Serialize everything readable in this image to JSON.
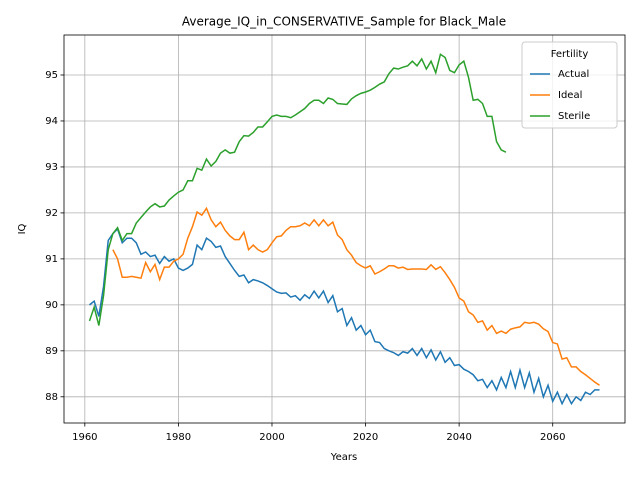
{
  "chart_data": {
    "type": "line",
    "title": "Average_IQ_in_CONSERVATIVE_Sample for Black_Male",
    "x_label": "Years",
    "y_label": "IQ",
    "legend_title": "Fertility",
    "legend_position": "upper right",
    "grid": true,
    "x": [
      1961,
      1962,
      1963,
      1964,
      1965,
      1966,
      1967,
      1968,
      1969,
      1970,
      1971,
      1972,
      1973,
      1974,
      1975,
      1976,
      1977,
      1978,
      1979,
      1980,
      1981,
      1982,
      1983,
      1984,
      1985,
      1986,
      1987,
      1988,
      1989,
      1990,
      1991,
      1992,
      1993,
      1994,
      1995,
      1996,
      1997,
      1998,
      1999,
      2000,
      2001,
      2002,
      2003,
      2004,
      2005,
      2006,
      2007,
      2008,
      2009,
      2010,
      2011,
      2012,
      2013,
      2014,
      2015,
      2016,
      2017,
      2018,
      2019,
      2020,
      2021,
      2022,
      2023,
      2024,
      2025,
      2026,
      2027,
      2028,
      2029,
      2030,
      2031,
      2032,
      2033,
      2034,
      2035,
      2036,
      2037,
      2038,
      2039,
      2040,
      2041,
      2042,
      2043,
      2044,
      2045,
      2046,
      2047,
      2048,
      2049,
      2050,
      2051,
      2052,
      2053,
      2054,
      2055,
      2056,
      2057,
      2058,
      2059,
      2060,
      2061,
      2062,
      2063,
      2064,
      2065,
      2066,
      2067,
      2068,
      2069,
      2070
    ],
    "series": [
      {
        "name": "Actual",
        "color": "#1f77b4",
        "values": [
          90.0,
          90.08,
          89.75,
          90.4,
          91.4,
          91.55,
          91.65,
          91.35,
          91.45,
          91.45,
          91.35,
          91.1,
          91.15,
          91.05,
          91.08,
          90.9,
          91.05,
          90.95,
          91.0,
          90.8,
          90.75,
          90.8,
          90.88,
          91.3,
          91.2,
          91.45,
          91.38,
          91.25,
          91.28,
          91.05,
          90.9,
          90.75,
          90.62,
          90.65,
          90.48,
          90.55,
          90.52,
          90.48,
          90.42,
          90.35,
          90.28,
          90.25,
          90.26,
          90.17,
          90.2,
          90.1,
          90.22,
          90.14,
          90.3,
          90.15,
          90.3,
          90.05,
          90.2,
          89.85,
          89.92,
          89.55,
          89.72,
          89.45,
          89.55,
          89.35,
          89.45,
          89.2,
          89.18,
          89.05,
          89.0,
          88.96,
          88.9,
          88.98,
          88.95,
          89.05,
          88.9,
          89.05,
          88.85,
          89.02,
          88.8,
          88.98,
          88.75,
          88.85,
          88.68,
          88.7,
          88.6,
          88.55,
          88.48,
          88.35,
          88.38,
          88.2,
          88.35,
          88.15,
          88.42,
          88.2,
          88.55,
          88.2,
          88.58,
          88.2,
          88.52,
          88.1,
          88.4,
          88.0,
          88.25,
          87.9,
          88.1,
          87.85,
          88.05,
          87.85,
          88.0,
          87.92,
          88.1,
          88.05,
          88.15,
          88.15
        ]
      },
      {
        "name": "Ideal",
        "color": "#ff7f0e",
        "values": [
          null,
          null,
          null,
          null,
          null,
          91.2,
          91.0,
          90.6,
          90.6,
          90.62,
          90.6,
          90.58,
          90.92,
          90.72,
          90.88,
          90.55,
          90.82,
          90.82,
          90.95,
          91.0,
          91.1,
          91.45,
          91.7,
          92.02,
          91.95,
          92.1,
          91.85,
          91.7,
          91.8,
          91.62,
          91.5,
          91.42,
          91.42,
          91.58,
          91.2,
          91.3,
          91.2,
          91.15,
          91.2,
          91.35,
          91.48,
          91.5,
          91.62,
          91.7,
          91.7,
          91.72,
          91.78,
          91.72,
          91.85,
          91.72,
          91.85,
          91.72,
          91.8,
          91.52,
          91.42,
          91.2,
          91.08,
          90.92,
          90.85,
          90.8,
          90.85,
          90.67,
          90.72,
          90.78,
          90.85,
          90.85,
          90.8,
          90.82,
          90.77,
          90.78,
          90.78,
          90.78,
          90.77,
          90.87,
          90.77,
          90.83,
          90.7,
          90.55,
          90.38,
          90.15,
          90.08,
          89.85,
          89.78,
          89.62,
          89.65,
          89.45,
          89.55,
          89.38,
          89.43,
          89.38,
          89.47,
          89.5,
          89.52,
          89.62,
          89.6,
          89.62,
          89.58,
          89.48,
          89.42,
          89.18,
          89.15,
          88.82,
          88.85,
          88.65,
          88.65,
          88.55,
          88.48,
          88.4,
          88.32,
          88.25
        ]
      },
      {
        "name": "Sterile",
        "color": "#2ca02c",
        "values": [
          89.65,
          89.95,
          89.55,
          90.2,
          91.2,
          91.55,
          91.68,
          91.4,
          91.55,
          91.55,
          91.78,
          91.9,
          92.02,
          92.13,
          92.2,
          92.13,
          92.15,
          92.28,
          92.37,
          92.45,
          92.5,
          92.7,
          92.7,
          92.97,
          92.93,
          93.17,
          93.02,
          93.12,
          93.3,
          93.37,
          93.3,
          93.32,
          93.55,
          93.68,
          93.67,
          93.75,
          93.87,
          93.87,
          93.98,
          94.1,
          94.13,
          94.1,
          94.1,
          94.07,
          94.13,
          94.2,
          94.27,
          94.38,
          94.45,
          94.45,
          94.38,
          94.5,
          94.47,
          94.38,
          94.37,
          94.36,
          94.48,
          94.55,
          94.6,
          94.63,
          94.67,
          94.73,
          94.8,
          94.85,
          95.03,
          95.15,
          95.13,
          95.17,
          95.2,
          95.3,
          95.2,
          95.35,
          95.13,
          95.3,
          95.05,
          95.45,
          95.38,
          95.1,
          95.05,
          95.22,
          95.3,
          94.95,
          94.45,
          94.47,
          94.38,
          94.1,
          94.1,
          93.55,
          93.37,
          93.32,
          null,
          null,
          null,
          null,
          null,
          null,
          null,
          null,
          null,
          null,
          null,
          null,
          null,
          null,
          null,
          null,
          null,
          null,
          null,
          null
        ]
      }
    ],
    "xlim": [
      1955.55,
      2075.45
    ],
    "xticks": [
      1960,
      1980,
      2000,
      2020,
      2040,
      2060
    ],
    "ylim": [
      87.43,
      95.87
    ],
    "yticks": [
      88,
      89,
      90,
      91,
      92,
      93,
      94,
      95
    ]
  }
}
